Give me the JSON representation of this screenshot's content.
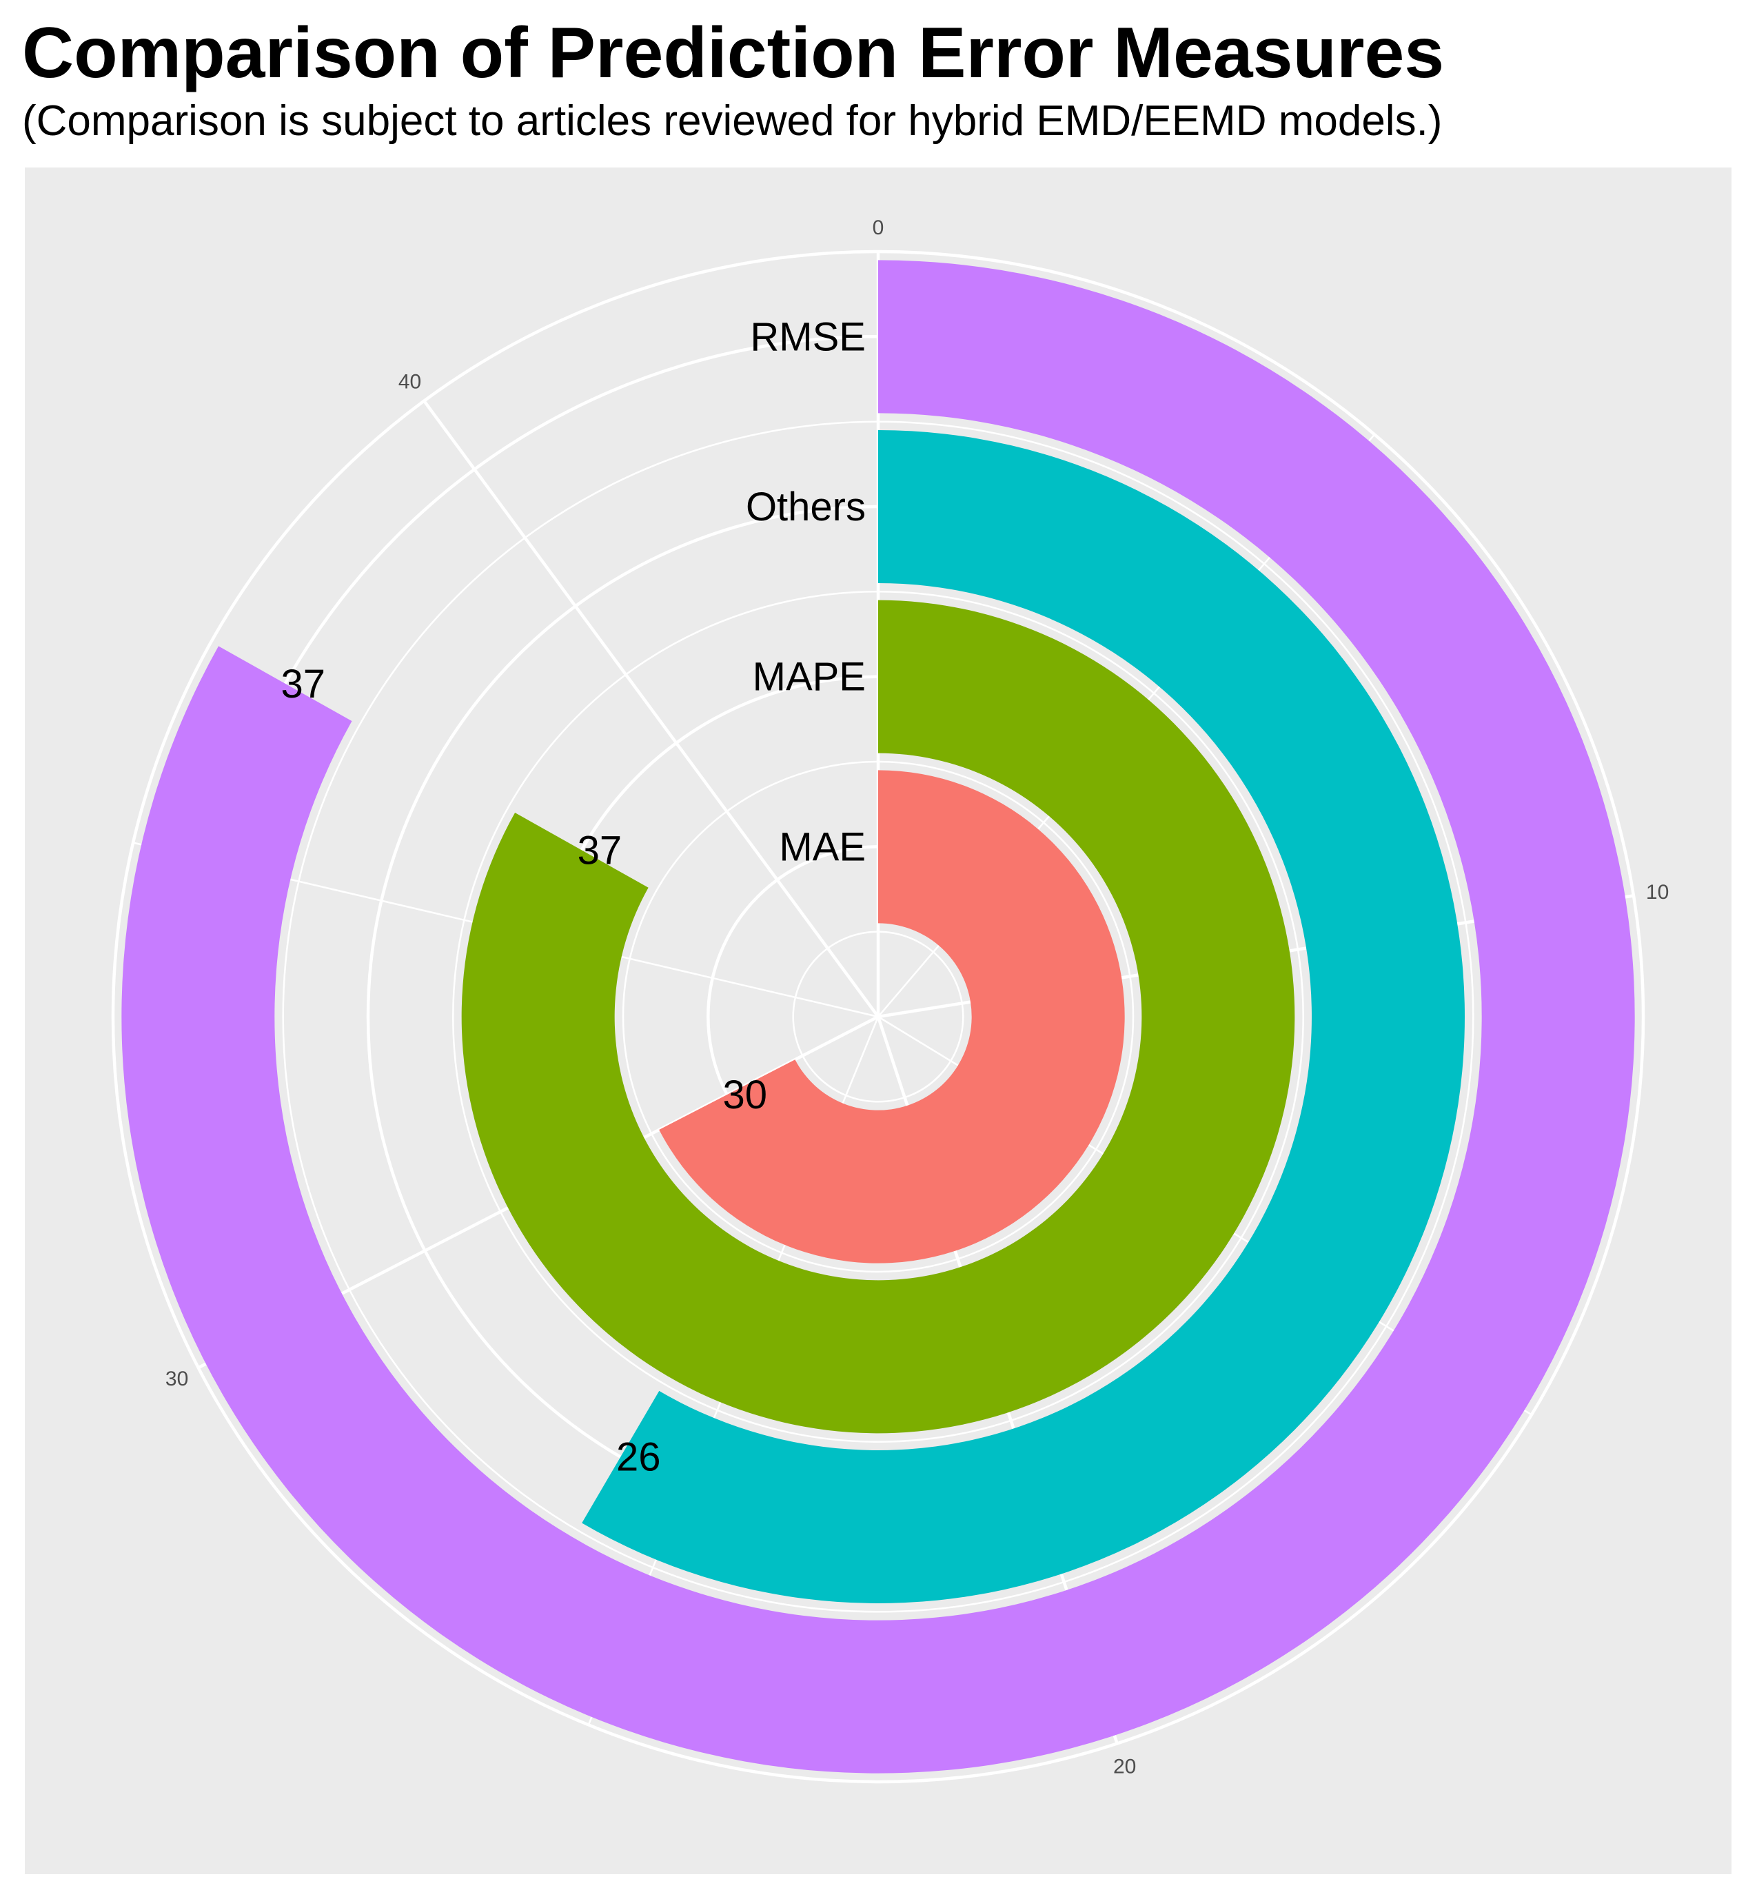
{
  "chart_data": {
    "type": "bar",
    "coord": "polar (radial bar)",
    "title": "Comparison of Prediction Error Measures",
    "subtitle": "(Comparison is subject to articles reviewed for hybrid EMD/EEMD models.)",
    "categories": [
      "MAE",
      "MAPE",
      "Others",
      "RMSE"
    ],
    "values": [
      30,
      37,
      26,
      37
    ],
    "colors": [
      "#F8766D",
      "#7CAE00",
      "#00BFC4",
      "#C77CFF"
    ],
    "theta_ticks": [
      0,
      10,
      20,
      30,
      40
    ],
    "theta_range": [
      0,
      44.5
    ],
    "panel_background": "#EBEBEB",
    "grid_color": "#FFFFFF",
    "grid": true,
    "legend": "none"
  }
}
